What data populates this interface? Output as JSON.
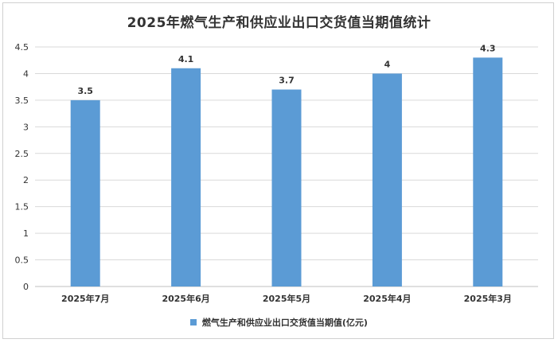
{
  "chart_data": {
    "type": "bar",
    "title": "2025年燃气生产和供应业出口交货值当期值统计",
    "categories": [
      "2025年7月",
      "2025年6月",
      "2025年5月",
      "2025年4月",
      "2025年3月"
    ],
    "series": [
      {
        "name": "燃气生产和供应业出口交货值当期值(亿元)",
        "values": [
          3.5,
          4.1,
          3.7,
          4,
          4.3
        ]
      }
    ],
    "data_labels": [
      "3.5",
      "4.1",
      "3.7",
      "4",
      "4.3"
    ],
    "yticks": [
      "0",
      "0.5",
      "1",
      "1.5",
      "2",
      "2.5",
      "3",
      "3.5",
      "4",
      "4.5"
    ],
    "ylim": [
      0,
      4.5
    ],
    "grid": true,
    "legend_position": "bottom",
    "colors": {
      "bar": "#5b9bd5",
      "grid": "#d9d9d9",
      "axis": "#bfbfbf"
    }
  }
}
